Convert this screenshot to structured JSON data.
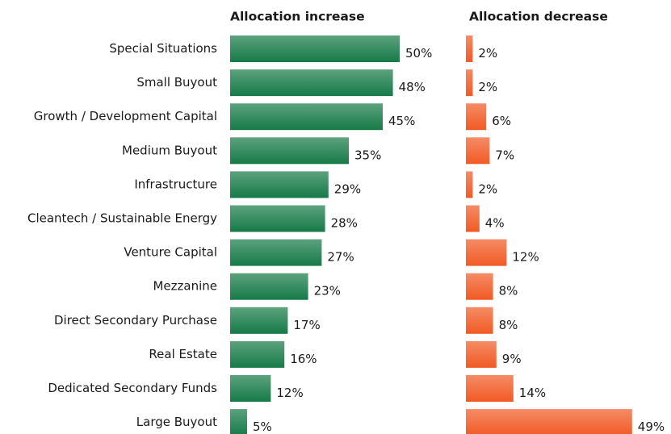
{
  "chart_data": {
    "type": "bar",
    "orientation": "horizontal",
    "categories": [
      "Special Situations",
      "Small Buyout",
      "Growth / Development Capital",
      "Medium Buyout",
      "Infrastructure",
      "Cleantech / Sustainable Energy",
      "Venture Capital",
      "Mezzanine",
      "Direct Secondary Purchase",
      "Real Estate",
      "Dedicated Secondary Funds",
      "Large Buyout"
    ],
    "series": [
      {
        "name": "Allocation increase",
        "color": "#167a47",
        "values": [
          50,
          48,
          45,
          35,
          29,
          28,
          27,
          23,
          17,
          16,
          12,
          5
        ],
        "value_labels": [
          "50%",
          "48%",
          "45%",
          "35%",
          "29%",
          "28%",
          "27%",
          "23%",
          "17%",
          "16%",
          "12%",
          "5%"
        ]
      },
      {
        "name": "Allocation decrease",
        "color": "#f15a24",
        "values": [
          2,
          2,
          6,
          7,
          2,
          4,
          12,
          8,
          8,
          9,
          14,
          49
        ],
        "value_labels": [
          "2%",
          "2%",
          "6%",
          "7%",
          "2%",
          "4%",
          "12%",
          "8%",
          "8%",
          "9%",
          "14%",
          "49%"
        ]
      }
    ]
  }
}
